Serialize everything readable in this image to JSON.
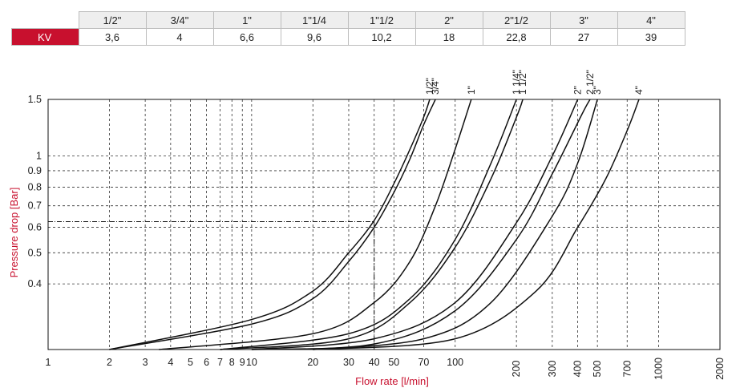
{
  "table": {
    "row_label": "KV",
    "sizes": [
      "1/2\"",
      "3/4\"",
      "1\"",
      "1\"1/4",
      "1\"1/2",
      "2\"",
      "2\"1/2",
      "3\"",
      "4\""
    ],
    "kv_values": [
      "3,6",
      "4",
      "6,6",
      "9,6",
      "10,2",
      "18",
      "22,8",
      "27",
      "39"
    ]
  },
  "chart_data": {
    "type": "line",
    "title": "",
    "xlabel": "Flow rate [l/min]",
    "ylabel": "Pressure drop [Bar]",
    "xscale": "log",
    "yscale": "log",
    "xlim": [
      1,
      2000
    ],
    "ylim": [
      0.25,
      1.5
    ],
    "x_tick_labels": [
      "1",
      "2",
      "3",
      "4",
      "5",
      "6",
      "7",
      "8",
      "9",
      "10",
      "20",
      "30",
      "40",
      "50",
      "70",
      "100",
      "200",
      "300",
      "400",
      "500",
      "700",
      "1000",
      "2000"
    ],
    "x_ticks": [
      1,
      2,
      3,
      4,
      5,
      6,
      7,
      8,
      9,
      10,
      20,
      30,
      40,
      50,
      70,
      100,
      200,
      300,
      400,
      500,
      700,
      1000,
      2000
    ],
    "y_tick_labels": [
      "0.4",
      "0.5",
      "0.6",
      "0.7",
      "0.8",
      "0.9",
      "1",
      "1.5"
    ],
    "y_ticks": [
      0.4,
      0.5,
      0.6,
      0.7,
      0.8,
      0.9,
      1,
      1.5
    ],
    "grid": true,
    "colors": {
      "accent": "#c8102e",
      "curve": "#111111",
      "grid": "#333333"
    },
    "series": [
      {
        "name": "1/2\"",
        "x": [
          2.0,
          10,
          20,
          30,
          40,
          50,
          60,
          70,
          75
        ],
        "y": [
          0.25,
          0.31,
          0.38,
          0.5,
          0.63,
          0.82,
          1.05,
          1.32,
          1.5
        ]
      },
      {
        "name": "3/4\"",
        "x": [
          2.0,
          10,
          20,
          30,
          40,
          50,
          60,
          70,
          80
        ],
        "y": [
          0.25,
          0.3,
          0.36,
          0.47,
          0.6,
          0.77,
          0.98,
          1.25,
          1.5
        ]
      },
      {
        "name": "1\"",
        "x": [
          3.5,
          20,
          40,
          60,
          80,
          100,
          120
        ],
        "y": [
          0.25,
          0.28,
          0.35,
          0.47,
          0.7,
          1.05,
          1.5
        ]
      },
      {
        "name": "1 1/4\"",
        "x": [
          7,
          30,
          60,
          100,
          150,
          200
        ],
        "y": [
          0.25,
          0.28,
          0.36,
          0.55,
          0.95,
          1.5
        ]
      },
      {
        "name": "1 1/2\"",
        "x": [
          7,
          30,
          60,
          100,
          150,
          200,
          215
        ],
        "y": [
          0.25,
          0.27,
          0.35,
          0.52,
          0.85,
          1.32,
          1.5
        ]
      },
      {
        "name": "2\"",
        "x": [
          10,
          40,
          100,
          200,
          300,
          400
        ],
        "y": [
          0.25,
          0.27,
          0.35,
          0.62,
          1.0,
          1.5
        ]
      },
      {
        "name": "2 1/2\"",
        "x": [
          10,
          40,
          100,
          200,
          300,
          420,
          460
        ],
        "y": [
          0.25,
          0.26,
          0.33,
          0.55,
          0.88,
          1.35,
          1.5
        ]
      },
      {
        "name": "3\"",
        "x": [
          20,
          70,
          150,
          300,
          400,
          500
        ],
        "y": [
          0.25,
          0.27,
          0.35,
          0.65,
          0.95,
          1.5
        ]
      },
      {
        "name": "4\"",
        "x": [
          20,
          100,
          250,
          400,
          550,
          700,
          800
        ],
        "y": [
          0.25,
          0.27,
          0.38,
          0.6,
          0.85,
          1.2,
          1.5
        ]
      }
    ],
    "reference_line": {
      "y": 0.625,
      "x_end": 40
    }
  }
}
